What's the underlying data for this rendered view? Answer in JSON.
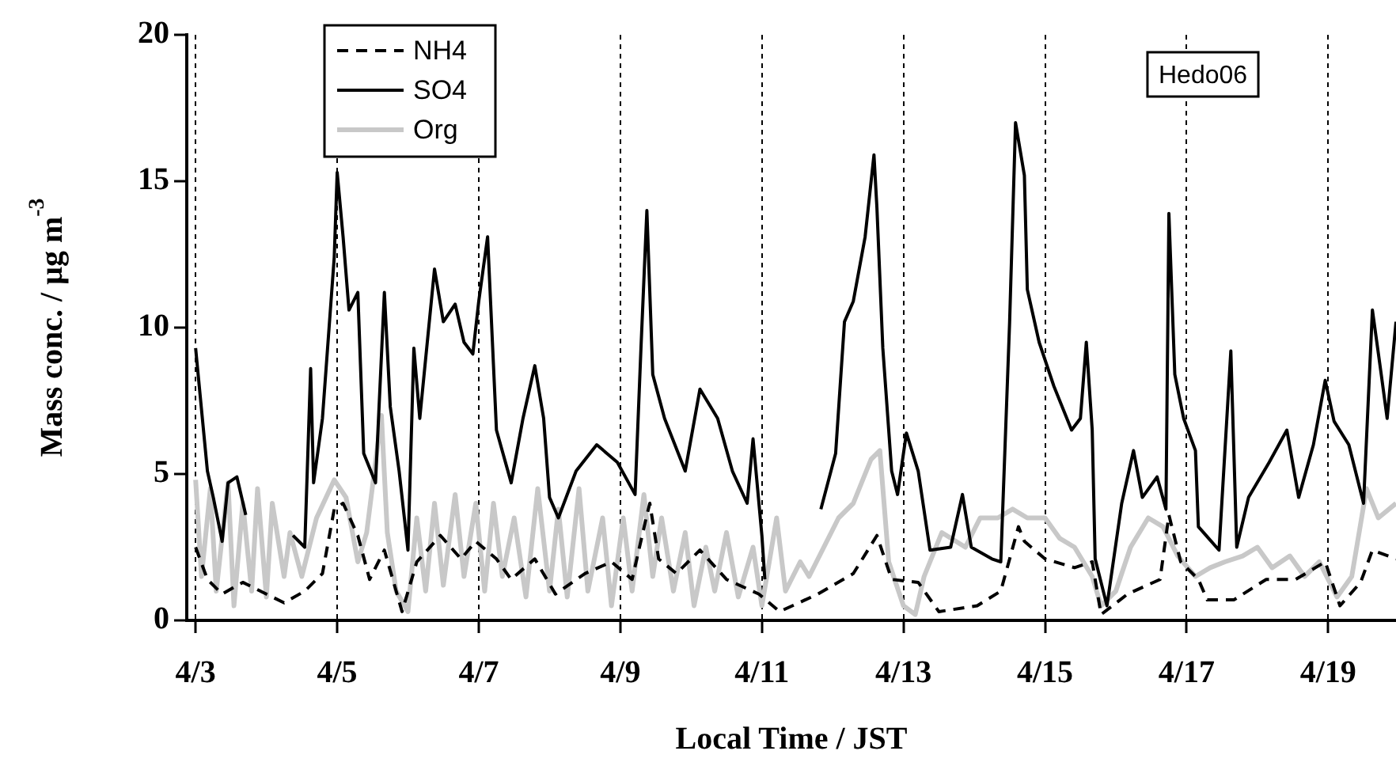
{
  "chart_data": {
    "type": "line",
    "xlabel": "Local Time / JST",
    "ylabel": "Mass conc. / μg m$^{-3}$",
    "annotations": [
      "Hedo06"
    ],
    "xlim": [
      "--04-02T21:00",
      "--04-19T23:00"
    ],
    "xticks": [
      {
        "value": "--04-03",
        "label": "4/3"
      },
      {
        "value": "--04-05",
        "label": "4/5"
      },
      {
        "value": "--04-07",
        "label": "4/7"
      },
      {
        "value": "--04-09",
        "label": "4/9"
      },
      {
        "value": "--04-11",
        "label": "4/11"
      },
      {
        "value": "--04-13",
        "label": "4/13"
      },
      {
        "value": "--04-15",
        "label": "4/15"
      },
      {
        "value": "--04-17",
        "label": "4/17"
      },
      {
        "value": "--04-19",
        "label": "4/19"
      }
    ],
    "ylim": [
      0,
      20
    ],
    "yticks": [
      0,
      5,
      10,
      15,
      20
    ],
    "grid": "x",
    "legend": "top left",
    "series": [
      {
        "name": "NH4",
        "color": "#000000",
        "line_style": "dashed",
        "x": [
          "--04-03T00:00",
          "--04-03T04:00",
          "--04-03T09:00",
          "--04-03T16:00",
          "--04-04T00:00",
          "--04-04T06:00",
          "--04-04T13:00",
          "--04-04T19:00",
          "--04-04T23:00",
          "--04-05T02:00",
          "--04-05T07:00",
          "--04-05T11:00",
          "--04-05T16:00",
          "--04-05T22:00",
          "--04-06T03:00",
          "--04-06T11:00",
          "--04-06T18:00",
          "--04-06T23:00",
          "--04-07T06:00",
          "--04-07T11:00",
          "--04-07T19:00",
          "--04-08T02:00",
          "--04-08T12:00",
          "--04-08T21:00",
          "--04-09T04:00",
          "--04-09T09:00",
          "--04-09T10:00",
          "--04-09T13:00",
          "--04-09T19:00",
          "--04-10T03:00",
          "--04-10T12:00",
          "--04-10T23:00",
          "--04-11T06:00",
          "--04-11T19:00",
          "--04-12T07:00",
          "--04-12T15:00",
          "--04-12T20:00",
          "--04-13T05:00",
          "--04-13T12:00",
          "--04-14T01:00",
          "--04-14T09:00",
          "--04-14T15:00",
          "--04-14T17:00",
          "--04-15T00:00",
          "--04-15T10:00",
          "--04-15T16:00",
          "--04-15T19:00",
          "--04-16T04:00",
          "--04-16T15:00",
          "--04-16T18:00",
          "--04-16T22:00",
          "--04-17T04:00",
          "--04-17T07:00",
          "--04-17T16:00",
          "--04-18T03:00",
          "--04-18T13:00",
          "--04-18T23:00",
          "--04-19T04:00",
          "--04-19T11:00",
          "--04-19T15:00",
          "--04-19T23:00"
        ],
        "values": [
          2.5,
          1.4,
          0.9,
          1.3,
          0.9,
          0.6,
          1.0,
          1.6,
          3.8,
          4.0,
          2.9,
          1.4,
          2.4,
          0.3,
          2.0,
          2.9,
          2.1,
          2.7,
          2.1,
          1.4,
          2.1,
          0.9,
          1.6,
          2.0,
          1.4,
          3.6,
          4.0,
          2.1,
          1.6,
          2.4,
          1.4,
          0.9,
          0.3,
          0.9,
          1.6,
          2.9,
          1.4,
          1.3,
          0.3,
          0.5,
          1.0,
          3.2,
          2.7,
          2.1,
          1.8,
          2.0,
          0.2,
          0.9,
          1.4,
          3.6,
          2.0,
          1.4,
          0.7,
          0.7,
          1.4,
          1.4,
          2.0,
          0.5,
          1.3,
          2.4,
          2.1
        ]
      },
      {
        "name": "SO4",
        "color": "#000000",
        "line_style": "solid",
        "x": [
          "--04-03T00:00",
          "--04-03T04:00",
          "--04-03T06:00",
          "--04-03T09:00",
          "--04-03T11:00",
          "--04-03T14:00",
          "--04-03T17:00",
          "--04-04T01:00",
          "--04-04T09:00",
          "--04-04T13:00",
          "--04-04T15:00",
          "--04-04T16:00",
          "--04-04T19:00",
          "--04-04T23:00",
          "--04-05T00:00",
          "--04-05T02:00",
          "--04-05T04:00",
          "--04-05T07:00",
          "--04-05T09:00",
          "--04-05T13:00",
          "--04-05T16:00",
          "--04-05T18:00",
          "--04-05T21:00",
          "--04-06T00:00",
          "--04-06T02:00",
          "--04-06T04:00",
          "--04-06T09:00",
          "--04-06T12:00",
          "--04-06T16:00",
          "--04-06T19:00",
          "--04-06T22:00",
          "--04-07T00:00",
          "--04-07T03:00",
          "--04-07T06:00",
          "--04-07T11:00",
          "--04-07T15:00",
          "--04-07T19:00",
          "--04-07T22:00",
          "--04-08T00:00",
          "--04-08T03:00",
          "--04-08T09:00",
          "--04-08T16:00",
          "--04-08T23:00",
          "--04-09T05:00",
          "--04-09T07:00",
          "--04-09T09:00",
          "--04-09T11:00",
          "--04-09T15:00",
          "--04-09T22:00",
          "--04-10T03:00",
          "--04-10T09:00",
          "--04-10T14:00",
          "--04-10T19:00",
          "--04-10T21:00",
          "--04-11T00:00",
          "--04-11T01:00",
          "--04-11T10:00",
          "--04-11T20:00",
          "--04-12T01:00",
          "--04-12T04:00",
          "--04-12T07:00",
          "--04-12T11:00",
          "--04-12T14:00",
          "--04-12T15:00",
          "--04-12T17:00",
          "--04-12T20:00",
          "--04-12T22:00",
          "--04-13T01:00",
          "--04-13T05:00",
          "--04-13T09:00",
          "--04-13T16:00",
          "--04-13T20:00",
          "--04-13T23:00",
          "--04-14T06:00",
          "--04-14T09:00",
          "--04-14T12:00",
          "--04-14T14:00",
          "--04-14T17:00",
          "--04-14T18:00",
          "--04-14T22:00",
          "--04-15T03:00",
          "--04-15T09:00",
          "--04-15T12:00",
          "--04-15T14:00",
          "--04-15T16:00",
          "--04-15T17:00",
          "--04-15T21:00",
          "--04-16T02:00",
          "--04-16T06:00",
          "--04-16T09:00",
          "--04-16T14:00",
          "--04-16T17:00",
          "--04-16T18:00",
          "--04-16T20:00",
          "--04-16T23:00",
          "--04-17T03:00",
          "--04-17T04:00",
          "--04-17T11:00",
          "--04-17T15:00",
          "--04-17T17:00",
          "--04-17T21:00",
          "--04-18T04:00",
          "--04-18T10:00",
          "--04-18T14:00",
          "--04-18T19:00",
          "--04-18T23:00",
          "--04-19T02:00",
          "--04-19T07:00",
          "--04-19T12:00",
          "--04-19T15:00",
          "--04-19T18:00",
          "--04-19T20:00",
          "--04-19T23:00"
        ],
        "values": [
          9.3,
          5.1,
          4.2,
          2.7,
          4.7,
          4.9,
          3.6,
          null,
          2.9,
          2.5,
          8.6,
          4.7,
          6.9,
          12.4,
          15.3,
          13.1,
          10.6,
          11.2,
          5.7,
          4.7,
          11.2,
          7.3,
          5.1,
          2.4,
          9.3,
          6.9,
          12.0,
          10.2,
          10.8,
          9.5,
          9.1,
          10.9,
          13.1,
          6.5,
          4.7,
          6.9,
          8.7,
          6.9,
          4.2,
          3.5,
          5.1,
          6.0,
          5.4,
          4.3,
          9.3,
          14.0,
          8.4,
          6.9,
          5.1,
          7.9,
          6.9,
          5.1,
          4.0,
          6.2,
          2.9,
          1.4,
          null,
          3.8,
          5.7,
          10.2,
          10.9,
          13.1,
          15.9,
          14.1,
          9.3,
          5.1,
          4.3,
          6.4,
          5.1,
          2.4,
          2.5,
          4.3,
          2.5,
          2.1,
          2.0,
          10.2,
          17.0,
          15.2,
          11.3,
          9.5,
          8.0,
          6.5,
          6.9,
          9.5,
          6.5,
          2.1,
          0.5,
          4.0,
          5.8,
          4.2,
          4.9,
          3.8,
          13.9,
          8.4,
          6.9,
          5.8,
          3.2,
          2.4,
          9.2,
          2.5,
          4.2,
          5.4,
          6.5,
          4.2,
          6.0,
          8.2,
          6.8,
          6.0,
          4.0,
          10.6,
          8.4,
          6.9,
          10.2
        ]
      },
      {
        "name": "Org",
        "color": "#c8c8c8",
        "line_style": "solid",
        "x": [
          "--04-03T00:00",
          "--04-03T02:00",
          "--04-03T05:00",
          "--04-03T07:00",
          "--04-03T11:00",
          "--04-03T13:00",
          "--04-03T16:00",
          "--04-03T19:00",
          "--04-03T21:00",
          "--04-04T00:00",
          "--04-04T02:00",
          "--04-04T06:00",
          "--04-04T08:00",
          "--04-04T12:00",
          "--04-04T17:00",
          "--04-04T23:00",
          "--04-05T03:00",
          "--04-05T07:00",
          "--04-05T10:00",
          "--04-05T15:00",
          "--04-05T17:00",
          "--04-05T20:00",
          "--04-06T00:00",
          "--04-06T03:00",
          "--04-06T06:00",
          "--04-06T09:00",
          "--04-06T12:00",
          "--04-06T16:00",
          "--04-06T19:00",
          "--04-06T23:00",
          "--04-07T02:00",
          "--04-07T05:00",
          "--04-07T08:00",
          "--04-07T12:00",
          "--04-07T16:00",
          "--04-07T20:00",
          "--04-08T00:00",
          "--04-08T03:00",
          "--04-08T06:00",
          "--04-08T10:00",
          "--04-08T13:00",
          "--04-08T18:00",
          "--04-08T21:00",
          "--04-09T01:00",
          "--04-09T04:00",
          "--04-09T08:00",
          "--04-09T11:00",
          "--04-09T14:00",
          "--04-09T18:00",
          "--04-09T22:00",
          "--04-10T01:00",
          "--04-10T05:00",
          "--04-10T08:00",
          "--04-10T12:00",
          "--04-10T16:00",
          "--04-10T21:00",
          "--04-11T00:00",
          "--04-11T05:00",
          "--04-11T08:00",
          "--04-11T13:00",
          "--04-11T16:00",
          "--04-11T21:00",
          "--04-12T02:00",
          "--04-12T07:00",
          "--04-12T13:00",
          "--04-12T16:00",
          "--04-12T19:00",
          "--04-13T00:00",
          "--04-13T04:00",
          "--04-13T07:00",
          "--04-13T13:00",
          "--04-13T21:00",
          "--04-14T02:00",
          "--04-14T08:00",
          "--04-14T13:00",
          "--04-14T18:00",
          "--04-15T00:00",
          "--04-15T05:00",
          "--04-15T10:00",
          "--04-15T16:00",
          "--04-15T19:00",
          "--04-16T00:00",
          "--04-16T05:00",
          "--04-16T11:00",
          "--04-16T16:00",
          "--04-16T21:00",
          "--04-17T03:00",
          "--04-17T08:00",
          "--04-17T13:00",
          "--04-17T19:00",
          "--04-18T00:00",
          "--04-18T05:00",
          "--04-18T11:00",
          "--04-18T16:00",
          "--04-18T21:00",
          "--04-19T03:00",
          "--04-19T08:00",
          "--04-19T13:00",
          "--04-19T17:00",
          "--04-19T23:00"
        ],
        "values": [
          4.8,
          1.5,
          4.5,
          1.0,
          4.7,
          0.5,
          4.0,
          1.0,
          4.5,
          0.8,
          4.0,
          1.5,
          3.0,
          1.5,
          3.5,
          4.8,
          4.2,
          2.0,
          3.0,
          7.0,
          3.0,
          1.0,
          0.3,
          3.5,
          1.0,
          4.0,
          1.2,
          4.3,
          1.5,
          4.0,
          1.0,
          4.0,
          1.5,
          3.5,
          0.8,
          4.5,
          1.0,
          3.8,
          0.8,
          4.5,
          1.0,
          3.5,
          0.5,
          3.5,
          1.0,
          4.3,
          1.5,
          3.5,
          1.0,
          3.0,
          0.5,
          2.5,
          1.0,
          3.0,
          0.8,
          2.5,
          0.5,
          3.5,
          1.0,
          2.0,
          1.5,
          2.5,
          3.5,
          4.0,
          5.5,
          5.8,
          2.0,
          0.5,
          0.2,
          1.5,
          3.0,
          2.5,
          3.5,
          3.5,
          3.8,
          3.5,
          3.5,
          2.8,
          2.5,
          1.5,
          0.5,
          1.0,
          2.5,
          3.5,
          3.2,
          2.2,
          1.5,
          1.8,
          2.0,
          2.2,
          2.5,
          1.8,
          2.2,
          1.5,
          2.0,
          0.8,
          1.5,
          4.5,
          3.5,
          4.0
        ]
      }
    ]
  }
}
